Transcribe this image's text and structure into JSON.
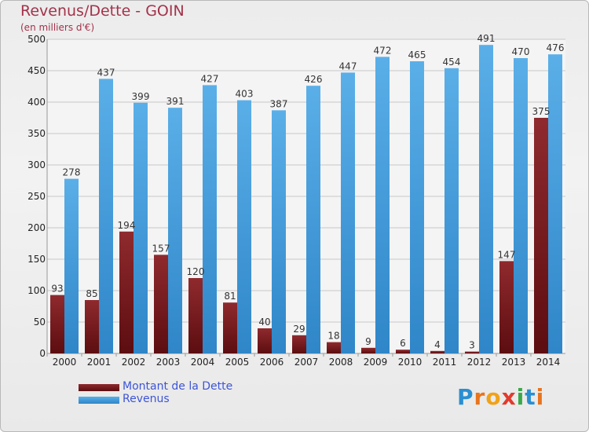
{
  "title": "Revenus/Dette - GOIN",
  "subtitle": "(en milliers d'€)",
  "logo": "Proxiti",
  "chart_data": {
    "type": "bar",
    "title": "Revenus/Dette - GOIN",
    "subtitle": "(en milliers d'€)",
    "categories": [
      "2000",
      "2001",
      "2002",
      "2003",
      "2004",
      "2005",
      "2006",
      "2007",
      "2008",
      "2009",
      "2010",
      "2011",
      "2012",
      "2013",
      "2014"
    ],
    "series": [
      {
        "name": "Montant de la Dette",
        "color": "#7b1e22",
        "values": [
          93,
          85,
          194,
          157,
          120,
          81,
          40,
          29,
          18,
          9,
          6,
          4,
          3,
          147,
          375
        ]
      },
      {
        "name": "Revenus",
        "color": "#4fa3e0",
        "values": [
          278,
          437,
          399,
          391,
          427,
          403,
          387,
          426,
          447,
          472,
          465,
          454,
          491,
          470,
          476
        ]
      }
    ],
    "ylim": [
      0,
      500
    ],
    "yticks": [
      0,
      50,
      100,
      150,
      200,
      250,
      300,
      350,
      400,
      450,
      500
    ],
    "grid": true,
    "legend": "bottom-left"
  }
}
